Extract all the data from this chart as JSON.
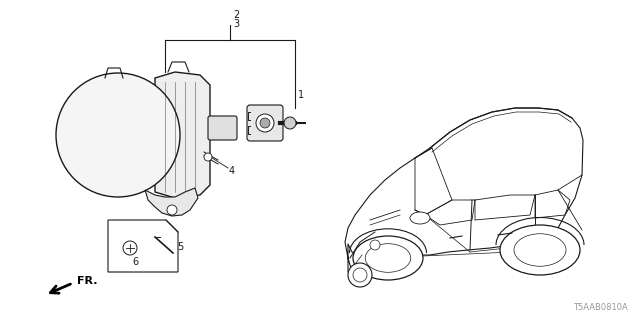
{
  "bg_color": "#ffffff",
  "line_color": "#1a1a1a",
  "diagram_code": "T5AAB0810A",
  "figsize": [
    6.4,
    3.2
  ],
  "dpi": 100
}
